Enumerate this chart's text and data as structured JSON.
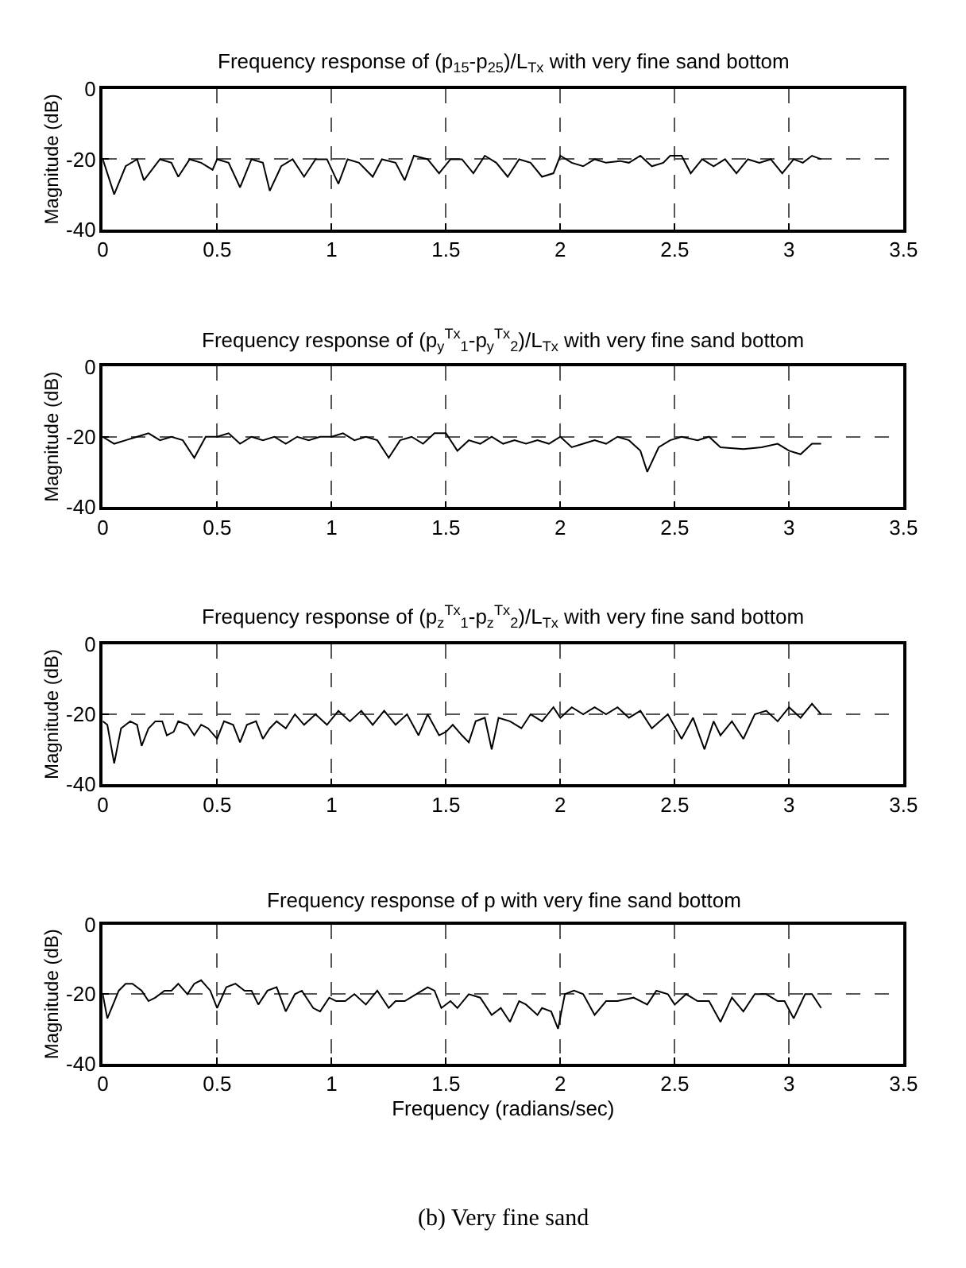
{
  "chart_data": [
    {
      "type": "line",
      "title": "Frequency response of (p$_{15}$-p$_{25}$)/L$_{Tx}$ with very fine sand bottom",
      "ylabel": "Magnitude (dB)",
      "xlim": [
        0,
        3.5
      ],
      "xticks": [
        0,
        0.5,
        1,
        1.5,
        2,
        2.5,
        3,
        3.5
      ],
      "ylim": [
        -40,
        0
      ],
      "yticks": [
        -40,
        -20,
        0
      ],
      "grid": true,
      "series": [
        {
          "color": "#000000",
          "x": [
            0,
            0.05,
            0.1,
            0.15,
            0.18,
            0.25,
            0.3,
            0.33,
            0.38,
            0.43,
            0.48,
            0.5,
            0.55,
            0.6,
            0.65,
            0.7,
            0.73,
            0.78,
            0.83,
            0.88,
            0.93,
            0.98,
            1.03,
            1.07,
            1.12,
            1.18,
            1.22,
            1.28,
            1.32,
            1.36,
            1.42,
            1.47,
            1.52,
            1.57,
            1.62,
            1.67,
            1.72,
            1.77,
            1.82,
            1.87,
            1.92,
            1.97,
            2.0,
            2.05,
            2.1,
            2.15,
            2.2,
            2.26,
            2.3,
            2.35,
            2.4,
            2.45,
            2.48,
            2.53,
            2.57,
            2.62,
            2.67,
            2.72,
            2.77,
            2.82,
            2.87,
            2.92,
            2.97,
            3.02,
            3.06,
            3.1,
            3.14
          ],
          "values": [
            -20,
            -30,
            -22,
            -20,
            -26,
            -20,
            -21,
            -25,
            -20,
            -21,
            -23,
            -20,
            -21,
            -28,
            -20,
            -21,
            -29,
            -22,
            -20,
            -25,
            -20,
            -20,
            -27,
            -20,
            -21,
            -25,
            -20,
            -21,
            -26,
            -19,
            -20,
            -24,
            -20,
            -20,
            -24,
            -19,
            -21,
            -25,
            -20,
            -21,
            -25,
            -24,
            -19,
            -21,
            -22,
            -20,
            -21,
            -20.5,
            -21,
            -19,
            -22,
            -21,
            -19,
            -19,
            -24,
            -20,
            -22,
            -20,
            -24,
            -20,
            -21,
            -20,
            -24,
            -20,
            -21,
            -19,
            -20
          ]
        }
      ]
    },
    {
      "type": "line",
      "title": "Frequency response of (p$_{y}$$^{Tx}$$_{1}$-p$_{y}$$^{Tx}$$_{2}$)/L$_{Tx}$ with very fine sand bottom",
      "ylabel": "Magnitude (dB)",
      "xlim": [
        0,
        3.5
      ],
      "xticks": [
        0,
        0.5,
        1,
        1.5,
        2,
        2.5,
        3,
        3.5
      ],
      "ylim": [
        -40,
        0
      ],
      "yticks": [
        -40,
        -20,
        0
      ],
      "grid": true,
      "series": [
        {
          "color": "#000000",
          "x": [
            0,
            0.05,
            0.1,
            0.15,
            0.2,
            0.25,
            0.3,
            0.35,
            0.4,
            0.45,
            0.5,
            0.55,
            0.6,
            0.65,
            0.7,
            0.75,
            0.8,
            0.85,
            0.9,
            0.95,
            1.0,
            1.05,
            1.1,
            1.15,
            1.2,
            1.25,
            1.3,
            1.35,
            1.4,
            1.45,
            1.5,
            1.55,
            1.6,
            1.65,
            1.7,
            1.75,
            1.8,
            1.85,
            1.9,
            1.95,
            2.0,
            2.05,
            2.1,
            2.15,
            2.2,
            2.25,
            2.3,
            2.35,
            2.38,
            2.43,
            2.48,
            2.53,
            2.6,
            2.65,
            2.7,
            2.8,
            2.88,
            2.95,
            3.0,
            3.05,
            3.1,
            3.14
          ],
          "values": [
            -20,
            -22,
            -21,
            -20,
            -19,
            -21,
            -20,
            -21,
            -26,
            -20,
            -20,
            -19,
            -22,
            -20,
            -21,
            -20,
            -22,
            -20,
            -21,
            -20,
            -20,
            -19,
            -21,
            -20,
            -21,
            -26,
            -21,
            -20,
            -22,
            -19,
            -19,
            -24,
            -21,
            -22,
            -20,
            -22,
            -21,
            -22,
            -21,
            -22,
            -20,
            -23,
            -22,
            -21,
            -22,
            -20,
            -21,
            -24,
            -30,
            -23,
            -21,
            -20,
            -21,
            -20,
            -23,
            -23.5,
            -23,
            -22,
            -24,
            -25,
            -22,
            -22
          ]
        }
      ]
    },
    {
      "type": "line",
      "title": "Frequency response of (p$_{z}$$^{Tx}$$_{1}$-p$_{z}$$^{Tx}$$_{2}$)/L$_{Tx}$ with very fine sand bottom",
      "ylabel": "Magnitude (dB)",
      "xlim": [
        0,
        3.5
      ],
      "xticks": [
        0,
        0.5,
        1,
        1.5,
        2,
        2.5,
        3,
        3.5
      ],
      "ylim": [
        -40,
        0
      ],
      "yticks": [
        -40,
        -20,
        0
      ],
      "grid": true,
      "series": [
        {
          "color": "#000000",
          "x": [
            0,
            0.02,
            0.05,
            0.08,
            0.12,
            0.15,
            0.17,
            0.2,
            0.23,
            0.26,
            0.28,
            0.31,
            0.33,
            0.37,
            0.4,
            0.43,
            0.46,
            0.5,
            0.53,
            0.57,
            0.6,
            0.63,
            0.67,
            0.7,
            0.73,
            0.76,
            0.8,
            0.84,
            0.88,
            0.93,
            0.98,
            1.03,
            1.08,
            1.13,
            1.18,
            1.23,
            1.28,
            1.33,
            1.38,
            1.42,
            1.47,
            1.5,
            1.53,
            1.57,
            1.6,
            1.63,
            1.67,
            1.7,
            1.73,
            1.78,
            1.83,
            1.87,
            1.92,
            1.97,
            2.0,
            2.05,
            2.1,
            2.15,
            2.2,
            2.25,
            2.3,
            2.35,
            2.4,
            2.47,
            2.53,
            2.58,
            2.63,
            2.67,
            2.7,
            2.75,
            2.8,
            2.85,
            2.9,
            2.95,
            3.0,
            3.05,
            3.1,
            3.14
          ],
          "values": [
            -22,
            -23,
            -34,
            -24,
            -22,
            -23,
            -29,
            -24,
            -22,
            -22,
            -26,
            -25,
            -22,
            -23,
            -26,
            -23,
            -24,
            -27,
            -22,
            -23,
            -28,
            -23,
            -22,
            -27,
            -24,
            -22,
            -24,
            -20,
            -23,
            -20,
            -23,
            -19,
            -22,
            -19,
            -23,
            -19,
            -23,
            -20,
            -26,
            -20,
            -26,
            -25,
            -23,
            -26,
            -28,
            -22,
            -21,
            -30,
            -21,
            -22,
            -24,
            -20,
            -22,
            -18,
            -21,
            -18,
            -20,
            -18,
            -20,
            -18,
            -21,
            -19,
            -24,
            -20,
            -27,
            -21,
            -30,
            -22,
            -26,
            -22,
            -27,
            -20,
            -19,
            -22,
            -18,
            -21,
            -17,
            -20
          ]
        }
      ]
    },
    {
      "type": "line",
      "title": "Frequency response of p with very fine sand bottom",
      "xlabel": "Frequency (radians/sec)",
      "ylabel": "Magnitude (dB)",
      "xlim": [
        0,
        3.5
      ],
      "xticks": [
        0,
        0.5,
        1,
        1.5,
        2,
        2.5,
        3,
        3.5
      ],
      "ylim": [
        -40,
        0
      ],
      "yticks": [
        -40,
        -20,
        0
      ],
      "grid": true,
      "annotations": [
        "(b) Very fine sand"
      ],
      "series": [
        {
          "color": "#000000",
          "x": [
            0,
            0.02,
            0.07,
            0.1,
            0.13,
            0.17,
            0.2,
            0.23,
            0.27,
            0.3,
            0.33,
            0.37,
            0.4,
            0.43,
            0.47,
            0.5,
            0.54,
            0.58,
            0.62,
            0.65,
            0.68,
            0.72,
            0.76,
            0.8,
            0.84,
            0.87,
            0.92,
            0.95,
            0.99,
            1.02,
            1.06,
            1.1,
            1.15,
            1.2,
            1.25,
            1.28,
            1.32,
            1.37,
            1.42,
            1.45,
            1.48,
            1.52,
            1.55,
            1.6,
            1.65,
            1.7,
            1.74,
            1.78,
            1.82,
            1.85,
            1.9,
            1.92,
            1.96,
            1.99,
            2.02,
            2.06,
            2.1,
            2.15,
            2.2,
            2.25,
            2.32,
            2.38,
            2.42,
            2.47,
            2.5,
            2.55,
            2.6,
            2.65,
            2.7,
            2.75,
            2.8,
            2.85,
            2.9,
            2.95,
            2.98,
            3.02,
            3.07,
            3.1,
            3.14
          ],
          "values": [
            -20,
            -27,
            -19,
            -17,
            -17,
            -19,
            -22,
            -21,
            -19,
            -19,
            -17,
            -20,
            -17,
            -16,
            -19,
            -24,
            -18,
            -17,
            -19,
            -19,
            -23,
            -19,
            -18,
            -25,
            -20,
            -19,
            -24,
            -25,
            -21,
            -22,
            -22,
            -20,
            -23,
            -19,
            -24,
            -22,
            -22,
            -20,
            -18,
            -19,
            -24,
            -22,
            -24,
            -20,
            -21,
            -26,
            -24,
            -28,
            -22,
            -23,
            -26,
            -24,
            -25,
            -30,
            -20,
            -19,
            -20,
            -26,
            -22,
            -22,
            -21,
            -23,
            -19,
            -20,
            -23,
            -20,
            -22,
            -22,
            -28,
            -21,
            -25,
            -20,
            -20,
            -22,
            -22,
            -27,
            -20,
            -20,
            -24
          ]
        }
      ]
    }
  ]
}
